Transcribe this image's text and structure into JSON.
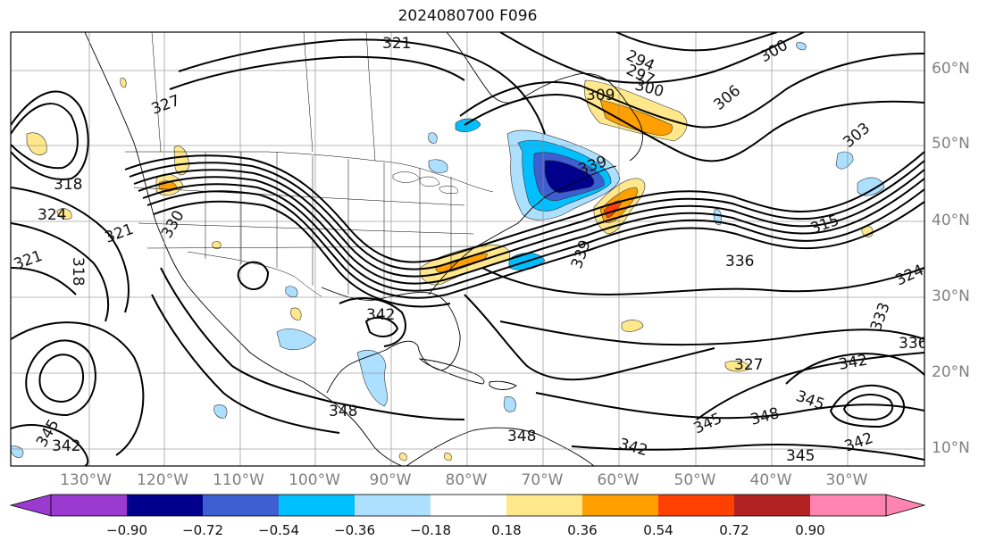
{
  "title": "2024080700 F096",
  "latitude_labels": [
    "60°N",
    "50°N",
    "40°N",
    "30°N",
    "20°N",
    "10°N"
  ],
  "longitude_labels": [
    "130°W",
    "120°W",
    "110°W",
    "100°W",
    "90°W",
    "80°W",
    "70°W",
    "60°W",
    "50°W",
    "40°W",
    "30°W"
  ],
  "contour_labels": [
    "321",
    "327",
    "294",
    "297",
    "300",
    "300",
    "306",
    "303",
    "315",
    "318",
    "324",
    "321",
    "321",
    "318",
    "339",
    "336",
    "342",
    "348",
    "345",
    "342",
    "342",
    "348",
    "345",
    "348",
    "345",
    "342",
    "345",
    "342",
    "333",
    "336",
    "330",
    "309",
    "339",
    "327",
    "324"
  ],
  "colorbar": {
    "ticks": [
      "−0.90",
      "−0.72",
      "−0.54",
      "−0.36",
      "−0.18",
      "0.18",
      "0.36",
      "0.54",
      "0.72",
      "0.90"
    ],
    "colors": [
      "#9a3ad0",
      "#00008c",
      "#3d5fd1",
      "#00bfff",
      "#addfff",
      "#ffffff",
      "#ffe88c",
      "#ffa000",
      "#ff4000",
      "#b22222",
      "#ff85b0"
    ]
  }
}
